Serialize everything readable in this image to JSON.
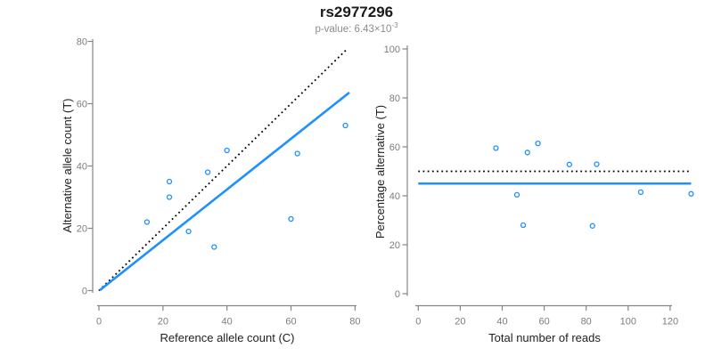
{
  "header": {
    "title": "rs2977296",
    "subtitle_prefix": "p-value: 6.43×10",
    "subtitle_exponent": "-3"
  },
  "colors": {
    "accent_blue": "#1E90FF",
    "axis_gray": "#868686",
    "tick_label_gray": "#7d7d7d",
    "line_black": "#000000",
    "title_black": "#1a1a1a",
    "subtitle_gray": "#8c8c8c"
  },
  "chart_data": [
    {
      "type": "scatter",
      "panel": "left",
      "xlabel": "Reference allele count (C)",
      "ylabel": "Alternative allele count (T)",
      "xlim": [
        0,
        80
      ],
      "ylim": [
        0,
        80
      ],
      "xticks": [
        0,
        20,
        40,
        60,
        80
      ],
      "yticks": [
        0,
        20,
        40,
        60,
        80
      ],
      "points": [
        [
          15,
          22
        ],
        [
          22,
          30
        ],
        [
          22,
          35
        ],
        [
          28,
          19
        ],
        [
          34,
          38
        ],
        [
          36,
          14
        ],
        [
          40,
          45
        ],
        [
          60,
          23
        ],
        [
          62,
          44
        ],
        [
          77,
          53
        ]
      ],
      "identity_line": {
        "style": "dotted",
        "color": "#000000",
        "from": [
          0,
          0
        ],
        "to": [
          77.3,
          77.3
        ]
      },
      "fit_line": {
        "style": "solid",
        "color": "#1E90FF",
        "slope": 0.82,
        "from": [
          0.5,
          0.3
        ],
        "to": [
          78,
          63.4
        ]
      },
      "grid": false,
      "legend": null
    },
    {
      "type": "scatter",
      "panel": "right",
      "xlabel": "Total number of reads",
      "ylabel": "Percentage alternative (T)",
      "xlim": [
        0,
        130
      ],
      "ylim": [
        0,
        100
      ],
      "xticks": [
        0,
        20,
        40,
        60,
        80,
        100,
        120
      ],
      "yticks": [
        0,
        20,
        40,
        60,
        80,
        100
      ],
      "points": [
        [
          37,
          59.5
        ],
        [
          52,
          57.7
        ],
        [
          57,
          61.4
        ],
        [
          47,
          40.4
        ],
        [
          72,
          52.8
        ],
        [
          50,
          28.0
        ],
        [
          85,
          52.9
        ],
        [
          83,
          27.7
        ],
        [
          106,
          41.5
        ],
        [
          130,
          40.8
        ]
      ],
      "hline_dotted": {
        "y": 50,
        "style": "dotted",
        "color": "#000000",
        "x_range": [
          0,
          130
        ]
      },
      "hline_solid": {
        "y": 45,
        "style": "solid",
        "color": "#1E90FF",
        "x_range": [
          0,
          130
        ]
      },
      "grid": false,
      "legend": null
    }
  ]
}
